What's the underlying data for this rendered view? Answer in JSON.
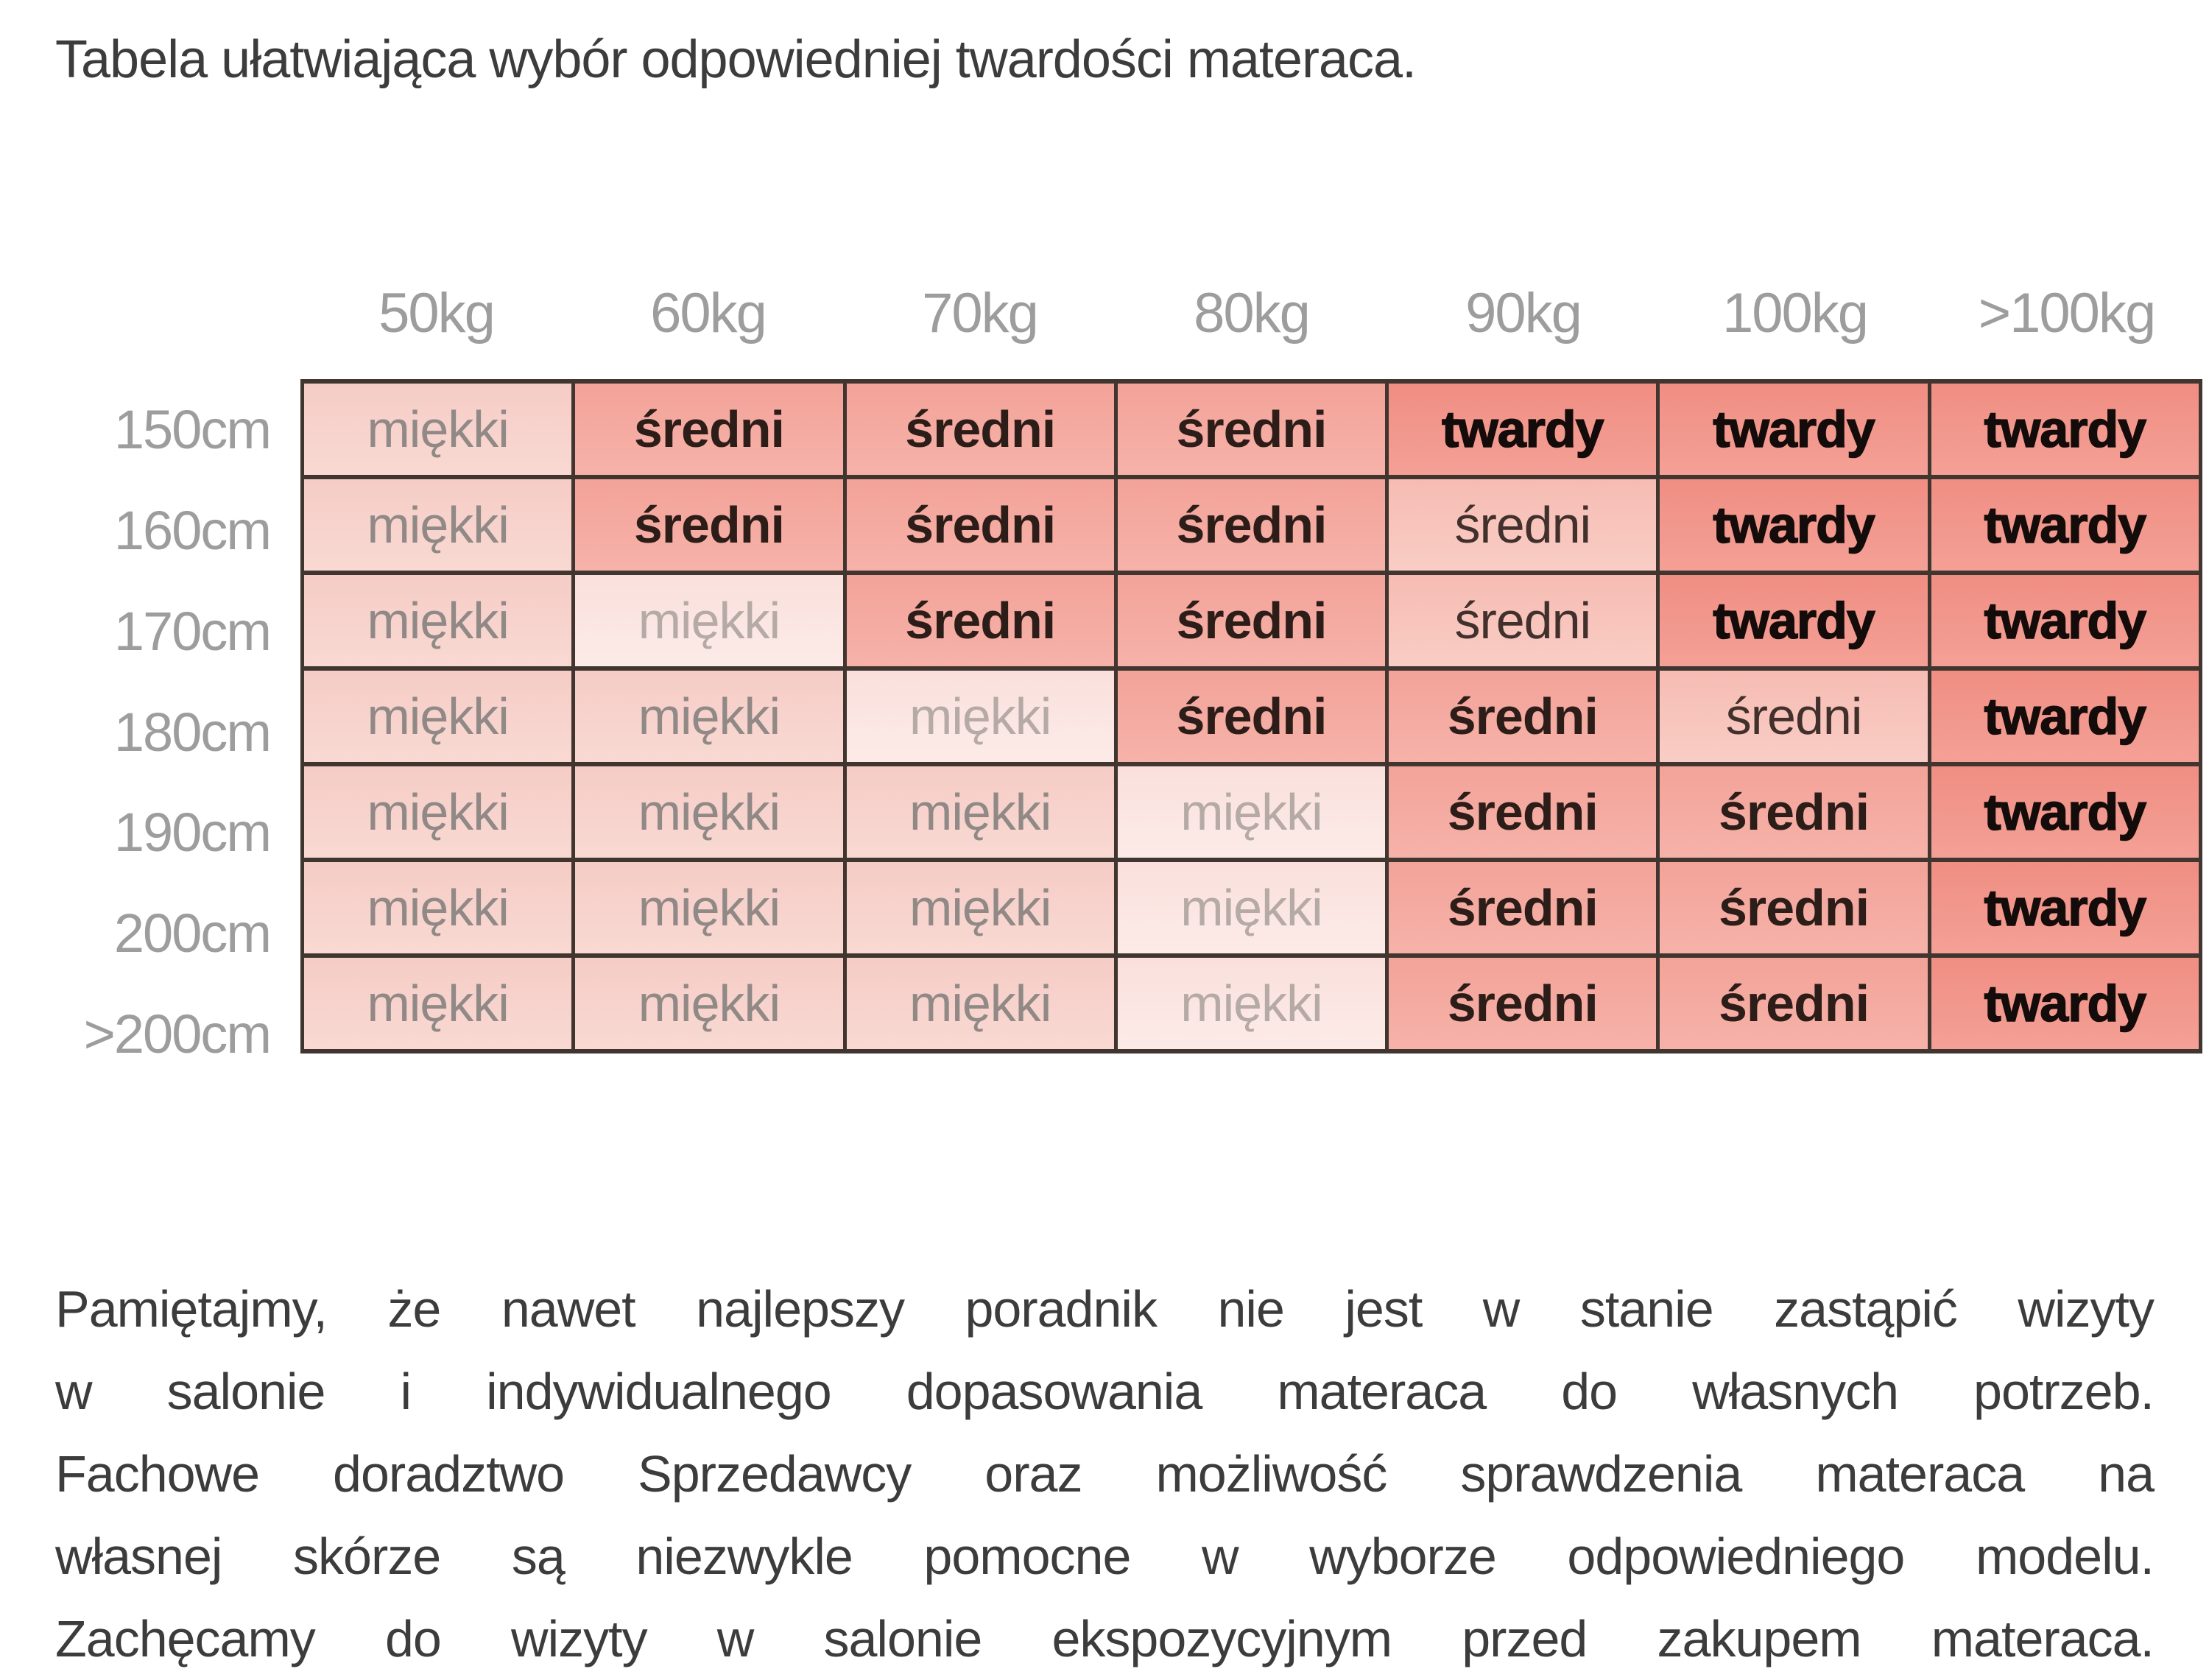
{
  "title": "Tabela ułatwiająca wybór odpowiedniej twardości materaca.",
  "table": {
    "weight_headers": [
      "50kg",
      "60kg",
      "70kg",
      "80kg",
      "90kg",
      "100kg",
      ">100kg"
    ],
    "height_headers": [
      "150cm",
      "160cm",
      "170cm",
      "180cm",
      "190cm",
      "200cm",
      ">200cm"
    ],
    "firmness_levels": {
      "m": "miękki",
      "m2": "miękki (jasny)",
      "s": "średni",
      "s2": "średni (przejściowy)",
      "t": "twardy"
    },
    "rows": [
      {
        "label": "150cm",
        "cells": [
          {
            "label": "miękki",
            "style": "m"
          },
          {
            "label": "średni",
            "style": "s"
          },
          {
            "label": "średni",
            "style": "s"
          },
          {
            "label": "średni",
            "style": "s"
          },
          {
            "label": "twardy",
            "style": "t"
          },
          {
            "label": "twardy",
            "style": "t"
          },
          {
            "label": "twardy",
            "style": "t"
          }
        ]
      },
      {
        "label": "160cm",
        "cells": [
          {
            "label": "miękki",
            "style": "m"
          },
          {
            "label": "średni",
            "style": "s"
          },
          {
            "label": "średni",
            "style": "s"
          },
          {
            "label": "średni",
            "style": "s"
          },
          {
            "label": "średni",
            "style": "s2"
          },
          {
            "label": "twardy",
            "style": "t"
          },
          {
            "label": "twardy",
            "style": "t"
          }
        ]
      },
      {
        "label": "170cm",
        "cells": [
          {
            "label": "miękki",
            "style": "m"
          },
          {
            "label": "miękki",
            "style": "m2"
          },
          {
            "label": "średni",
            "style": "s"
          },
          {
            "label": "średni",
            "style": "s"
          },
          {
            "label": "średni",
            "style": "s2"
          },
          {
            "label": "twardy",
            "style": "t"
          },
          {
            "label": "twardy",
            "style": "t"
          }
        ]
      },
      {
        "label": "180cm",
        "cells": [
          {
            "label": "miękki",
            "style": "m"
          },
          {
            "label": "miękki",
            "style": "m"
          },
          {
            "label": "miękki",
            "style": "m2"
          },
          {
            "label": "średni",
            "style": "s"
          },
          {
            "label": "średni",
            "style": "s"
          },
          {
            "label": "średni",
            "style": "s2"
          },
          {
            "label": "twardy",
            "style": "t"
          }
        ]
      },
      {
        "label": "190cm",
        "cells": [
          {
            "label": "miękki",
            "style": "m"
          },
          {
            "label": "miękki",
            "style": "m"
          },
          {
            "label": "miękki",
            "style": "m"
          },
          {
            "label": "miękki",
            "style": "m2"
          },
          {
            "label": "średni",
            "style": "s"
          },
          {
            "label": "średni",
            "style": "s"
          },
          {
            "label": "twardy",
            "style": "t"
          }
        ]
      },
      {
        "label": "200cm",
        "cells": [
          {
            "label": "miękki",
            "style": "m"
          },
          {
            "label": "miękki",
            "style": "m"
          },
          {
            "label": "miękki",
            "style": "m"
          },
          {
            "label": "miękki",
            "style": "m2"
          },
          {
            "label": "średni",
            "style": "s"
          },
          {
            "label": "średni",
            "style": "s"
          },
          {
            "label": "twardy",
            "style": "t"
          }
        ]
      },
      {
        "label": ">200cm",
        "cells": [
          {
            "label": "miękki",
            "style": "m"
          },
          {
            "label": "miękki",
            "style": "m"
          },
          {
            "label": "miękki",
            "style": "m"
          },
          {
            "label": "miękki",
            "style": "m2"
          },
          {
            "label": "średni",
            "style": "s"
          },
          {
            "label": "średni",
            "style": "s"
          },
          {
            "label": "twardy",
            "style": "t"
          }
        ]
      }
    ]
  },
  "footer_lines": [
    "Pamiętajmy, że nawet najlepszy poradnik nie jest w stanie zastąpić wizyty",
    "w salonie i indywidualnego dopasowania materaca do własnych potrzeb.",
    "Fachowe doradztwo Sprzedawcy oraz możliwość sprawdzenia materaca na",
    "własnej skórze są niezwykle pomocne w wyborze odpowiedniego modelu.",
    "Zachęcamy do wizyty w salonie ekspozycyjnym przed zakupem materaca."
  ],
  "colors": {
    "grid_line": "#41362f",
    "label_gray": "#9d9d9d",
    "text_dark": "#3c3c3c",
    "soft_bg1": "#f6ccc6",
    "soft_bg2": "#f9d9d3",
    "soft_pale_bg1": "#fae0dc",
    "soft_pale_bg2": "#fcebe8",
    "medium_bg1": "#f3a399",
    "medium_bg2": "#f6b2a9",
    "medium_soft_bg1": "#f6bcb3",
    "medium_soft_bg2": "#f9cdc5",
    "hard_bg1": "#f08e83",
    "hard_bg2": "#f4a096",
    "soft_text": "#908986",
    "soft_pale_text": "#b5aaa6",
    "medium_text": "#2c1d19",
    "medium_soft_text": "#41302c",
    "hard_text": "#140c0a"
  }
}
